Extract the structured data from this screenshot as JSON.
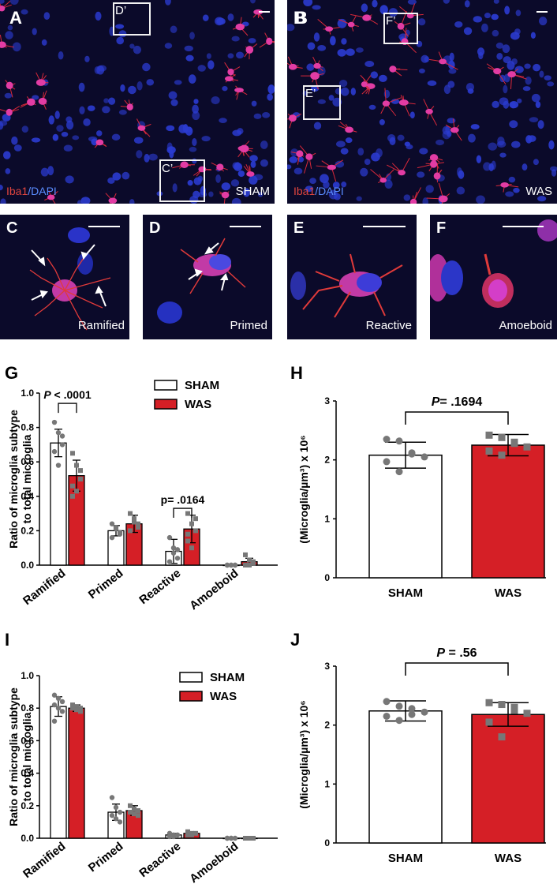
{
  "labels": {
    "A": "A",
    "B": "B",
    "C": "C",
    "D": "D",
    "E": "E",
    "F": "F",
    "G": "G",
    "H": "H",
    "I": "I",
    "J": "J"
  },
  "micrographs": {
    "A": {
      "condition": "SHAM",
      "stain_iba": "Iba1",
      "stain_sep": "/",
      "stain_dapi": "DAPI",
      "insets": [
        "D’",
        "C’"
      ]
    },
    "B": {
      "condition": "WAS",
      "stain_iba": "Iba1",
      "stain_sep": "/",
      "stain_dapi": "DAPI",
      "insets": [
        "F’",
        "E’"
      ]
    },
    "C": {
      "morphology": "Ramified"
    },
    "D": {
      "morphology": "Primed"
    },
    "E": {
      "morphology": "Reactive"
    },
    "F": {
      "morphology": "Amoeboid"
    }
  },
  "colors": {
    "sham_fill": "#ffffff",
    "was_fill": "#d51f26",
    "sham_points": "#777777",
    "was_points": "#777777",
    "axis": "#000000"
  },
  "chart_data": [
    {
      "id": "G",
      "type": "bar",
      "ylabel": "Ratio of microglia subtype to total microglia",
      "ylim": [
        0,
        1.0
      ],
      "yticks": [
        "0.0",
        "0.2",
        "0.4",
        "0.6",
        "0.8",
        "1.0"
      ],
      "categories": [
        "Ramified",
        "Primed",
        "Reactive",
        "Amoeboid"
      ],
      "legend": [
        "SHAM",
        "WAS"
      ],
      "series": [
        {
          "name": "SHAM",
          "values": [
            0.71,
            0.2,
            0.08,
            0.0
          ],
          "errors": [
            0.08,
            0.03,
            0.07,
            0.005
          ],
          "points": [
            [
              0.83,
              0.77,
              0.7,
              0.66,
              0.58,
              0.75
            ],
            [
              0.24,
              0.22,
              0.18,
              0.16,
              0.21,
              0.19
            ],
            [
              0.16,
              0.1,
              0.04,
              0.02,
              0.07,
              0.09
            ],
            [
              0.0,
              0.0,
              0.0,
              0.0,
              0.0,
              0.0
            ]
          ]
        },
        {
          "name": "WAS",
          "values": [
            0.52,
            0.24,
            0.21,
            0.02
          ],
          "errors": [
            0.09,
            0.05,
            0.08,
            0.02
          ],
          "points": [
            [
              0.65,
              0.58,
              0.5,
              0.46,
              0.43,
              0.55,
              0.4
            ],
            [
              0.3,
              0.25,
              0.22,
              0.2,
              0.27,
              0.24
            ],
            [
              0.3,
              0.24,
              0.2,
              0.14,
              0.1,
              0.27,
              0.18
            ],
            [
              0.06,
              0.03,
              0.01,
              0.0,
              0.0,
              0.02
            ]
          ]
        }
      ],
      "annotations": [
        {
          "label_italic": "P",
          "label_rest": " < .0001"
        },
        {
          "label_italic": "",
          "label_rest": "p= .0164"
        }
      ]
    },
    {
      "id": "H",
      "type": "bar",
      "ylabel": "(Microglia/µm³) x 10⁶",
      "ylim": [
        0,
        3
      ],
      "yticks": [
        "0",
        "1",
        "2",
        "3"
      ],
      "categories": [
        "SHAM",
        "WAS"
      ],
      "values": [
        2.08,
        2.25
      ],
      "errors": [
        0.22,
        0.18
      ],
      "points": [
        [
          2.35,
          2.32,
          2.12,
          2.05,
          1.97,
          1.8,
          2.1
        ],
        [
          2.42,
          2.38,
          2.3,
          2.22,
          2.15,
          2.08,
          2.28
        ]
      ],
      "annotation": {
        "label_italic": "P",
        "label_rest": "= .1694"
      }
    },
    {
      "id": "I",
      "type": "bar",
      "ylabel": "Ratio of microglia subtype to total microglia",
      "ylim": [
        0,
        1.0
      ],
      "yticks": [
        "0.0",
        "0.2",
        "0.4",
        "0.6",
        "0.8",
        "1.0"
      ],
      "categories": [
        "Ramified",
        "Primed",
        "Reactive",
        "Amoeboid"
      ],
      "legend": [
        "SHAM",
        "WAS"
      ],
      "series": [
        {
          "name": "SHAM",
          "values": [
            0.81,
            0.16,
            0.02,
            0.0
          ],
          "errors": [
            0.06,
            0.05,
            0.01,
            0.005
          ],
          "points": [
            [
              0.88,
              0.86,
              0.84,
              0.82,
              0.8,
              0.78,
              0.72
            ],
            [
              0.25,
              0.19,
              0.16,
              0.14,
              0.12,
              0.1
            ],
            [
              0.03,
              0.02,
              0.02,
              0.01,
              0.01
            ],
            [
              0.0,
              0.0,
              0.0,
              0.0,
              0.0
            ]
          ]
        },
        {
          "name": "WAS",
          "values": [
            0.8,
            0.17,
            0.03,
            0.0
          ],
          "errors": [
            0.02,
            0.03,
            0.01,
            0.005
          ],
          "points": [
            [
              0.82,
              0.81,
              0.8,
              0.8,
              0.79,
              0.78
            ],
            [
              0.2,
              0.18,
              0.17,
              0.16,
              0.15,
              0.14
            ],
            [
              0.04,
              0.03,
              0.03,
              0.02,
              0.02
            ],
            [
              0.0,
              0.0,
              0.0,
              0.0,
              0.0
            ]
          ]
        }
      ]
    },
    {
      "id": "J",
      "type": "bar",
      "ylabel": "(Microglia/µm³) x 10⁶",
      "ylim": [
        0,
        3
      ],
      "yticks": [
        "0",
        "1",
        "2",
        "3"
      ],
      "categories": [
        "SHAM",
        "WAS"
      ],
      "values": [
        2.24,
        2.18
      ],
      "errors": [
        0.17,
        0.2
      ],
      "points": [
        [
          2.4,
          2.32,
          2.28,
          2.22,
          2.15,
          2.08,
          2.18
        ],
        [
          2.38,
          2.35,
          2.3,
          2.2,
          2.05,
          1.8,
          2.25
        ]
      ],
      "annotation": {
        "label_italic": "P",
        "label_rest": " = .56"
      }
    }
  ]
}
